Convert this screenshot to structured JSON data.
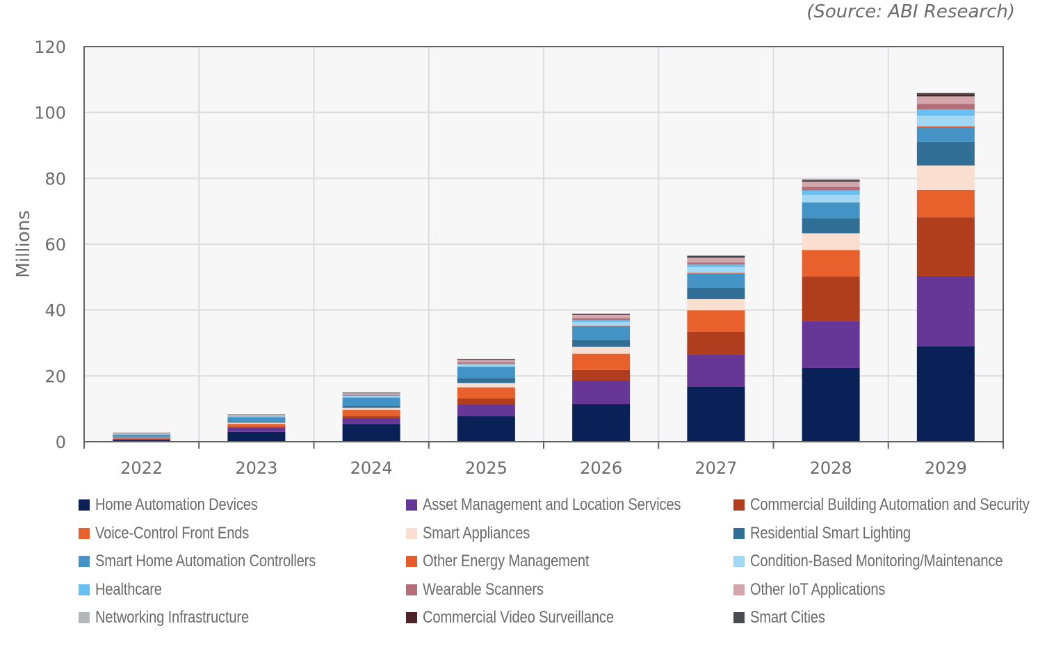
{
  "chart_data": {
    "type": "bar",
    "stacked": true,
    "title": "",
    "source_note": "(Source: ABI Research)",
    "xlabel": "",
    "ylabel": "Millions",
    "ylim": [
      0,
      120
    ],
    "yticks": [
      0,
      20,
      40,
      60,
      80,
      100,
      120
    ],
    "grid": true,
    "legend_position": "bottom",
    "categories": [
      "2022",
      "2023",
      "2024",
      "2025",
      "2026",
      "2027",
      "2028",
      "2029"
    ],
    "series": [
      {
        "name": "Home Automation Devices",
        "color": "#0a2158",
        "values": [
          0.5,
          3.0,
          5.3,
          7.8,
          11.4,
          16.7,
          22.4,
          29.0
        ]
      },
      {
        "name": "Asset Management and Location Services",
        "color": "#663797",
        "values": [
          0.3,
          1.3,
          1.9,
          3.6,
          7.2,
          9.7,
          14.3,
          21.3
        ]
      },
      {
        "name": "Commercial Building Automation and Security",
        "color": "#b03e1c",
        "values": [
          0.1,
          0.3,
          0.6,
          1.7,
          3.2,
          7.0,
          13.5,
          17.9
        ]
      },
      {
        "name": "Voice-Control Front Ends",
        "color": "#e8602c",
        "values": [
          0.3,
          0.8,
          1.9,
          3.4,
          4.9,
          6.5,
          8.0,
          8.3
        ]
      },
      {
        "name": "Smart Appliances",
        "color": "#fadfd1",
        "values": [
          0.1,
          0.4,
          0.6,
          1.3,
          2.1,
          3.4,
          5.1,
          7.4
        ]
      },
      {
        "name": "Residential Smart Lighting",
        "color": "#326f96",
        "values": [
          0.2,
          0.3,
          0.6,
          1.5,
          2.1,
          3.4,
          4.6,
          7.2
        ]
      },
      {
        "name": "Smart Home Automation Controllers",
        "color": "#4393c6",
        "values": [
          0.6,
          1.3,
          2.5,
          3.4,
          4.2,
          4.4,
          4.6,
          4.4
        ]
      },
      {
        "name": "Other Energy Management",
        "color": "#ea5b2b",
        "values": [
          0.02,
          0.05,
          0.05,
          0.1,
          0.1,
          0.2,
          0.2,
          0.3
        ]
      },
      {
        "name": "Condition-Based Monitoring/Maintenance",
        "color": "#a0d8f5",
        "values": [
          0.1,
          0.2,
          0.4,
          0.6,
          1.1,
          1.7,
          2.3,
          3.2
        ]
      },
      {
        "name": "Healthcare",
        "color": "#67c0f2",
        "values": [
          0.05,
          0.1,
          0.2,
          0.3,
          0.6,
          0.8,
          1.3,
          1.9
        ]
      },
      {
        "name": "Wearable Scanners",
        "color": "#b46e78",
        "values": [
          0.05,
          0.1,
          0.2,
          0.4,
          0.6,
          0.6,
          1.1,
          1.7
        ]
      },
      {
        "name": "Other IoT Applications",
        "color": "#d3a6ac",
        "values": [
          0.05,
          0.2,
          0.3,
          0.6,
          0.8,
          1.3,
          1.3,
          2.1
        ]
      },
      {
        "name": "Networking Infrastructure",
        "color": "#b4b6b8",
        "values": [
          0.3,
          0.3,
          0.2,
          0.15,
          0.2,
          0.2,
          0.3,
          0.2
        ]
      },
      {
        "name": "Commercial Video Surveillance",
        "color": "#4f2327",
        "values": [
          0.05,
          0.05,
          0.1,
          0.15,
          0.2,
          0.3,
          0.3,
          0.6
        ]
      },
      {
        "name": "Smart Cities",
        "color": "#4a4c4f",
        "values": [
          0.05,
          0.05,
          0.1,
          0.15,
          0.2,
          0.3,
          0.3,
          0.4
        ]
      }
    ]
  }
}
